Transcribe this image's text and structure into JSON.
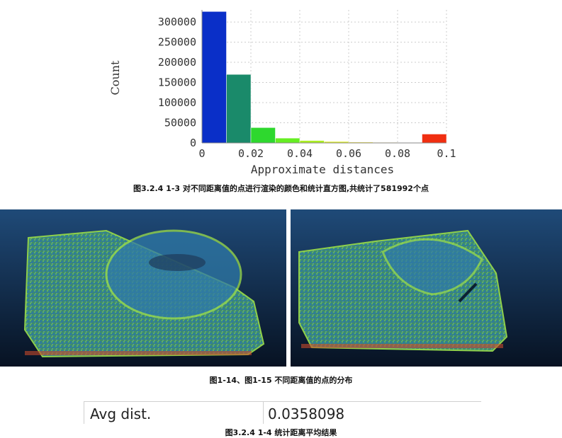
{
  "chart_data": {
    "type": "bar",
    "categories": [
      "0-0.01",
      "0.01-0.02",
      "0.02-0.03",
      "0.03-0.04",
      "0.04-0.05",
      "0.05-0.06",
      "0.06-0.07",
      "0.07-0.08",
      "0.08-0.09",
      "0.09-0.1"
    ],
    "values": [
      326000,
      170000,
      38000,
      12000,
      6000,
      3500,
      2000,
      1500,
      800,
      22000
    ],
    "bar_colors": [
      "#0a2fc8",
      "#1a8a6a",
      "#2ed82e",
      "#66ee22",
      "#aaee22",
      "#ddee22",
      "#f0e020",
      "#f0c020",
      "#f0a020",
      "#f02e10"
    ],
    "xlabel": "Approximate distances",
    "ylabel": "Count",
    "xticks": [
      "0",
      "0.02",
      "0.04",
      "0.06",
      "0.08",
      "0.1"
    ],
    "yticks": [
      "0",
      "50000",
      "100000",
      "150000",
      "200000",
      "250000",
      "300000"
    ],
    "xlim": [
      0,
      0.1
    ],
    "ylim": [
      0,
      330000
    ],
    "grid": true
  },
  "captions": {
    "fig1": "图3.2.4 1-3 对不同距离值的点进行渲染的颜色和统计直方图,共统计了581992个点",
    "fig2": "图1-14、图1-15 不同距离值的点的分布",
    "fig3": "图3.2.4 1-4 统计距离平均结果"
  },
  "result_table": {
    "label": "Avg dist.",
    "value": "0.0358098"
  }
}
